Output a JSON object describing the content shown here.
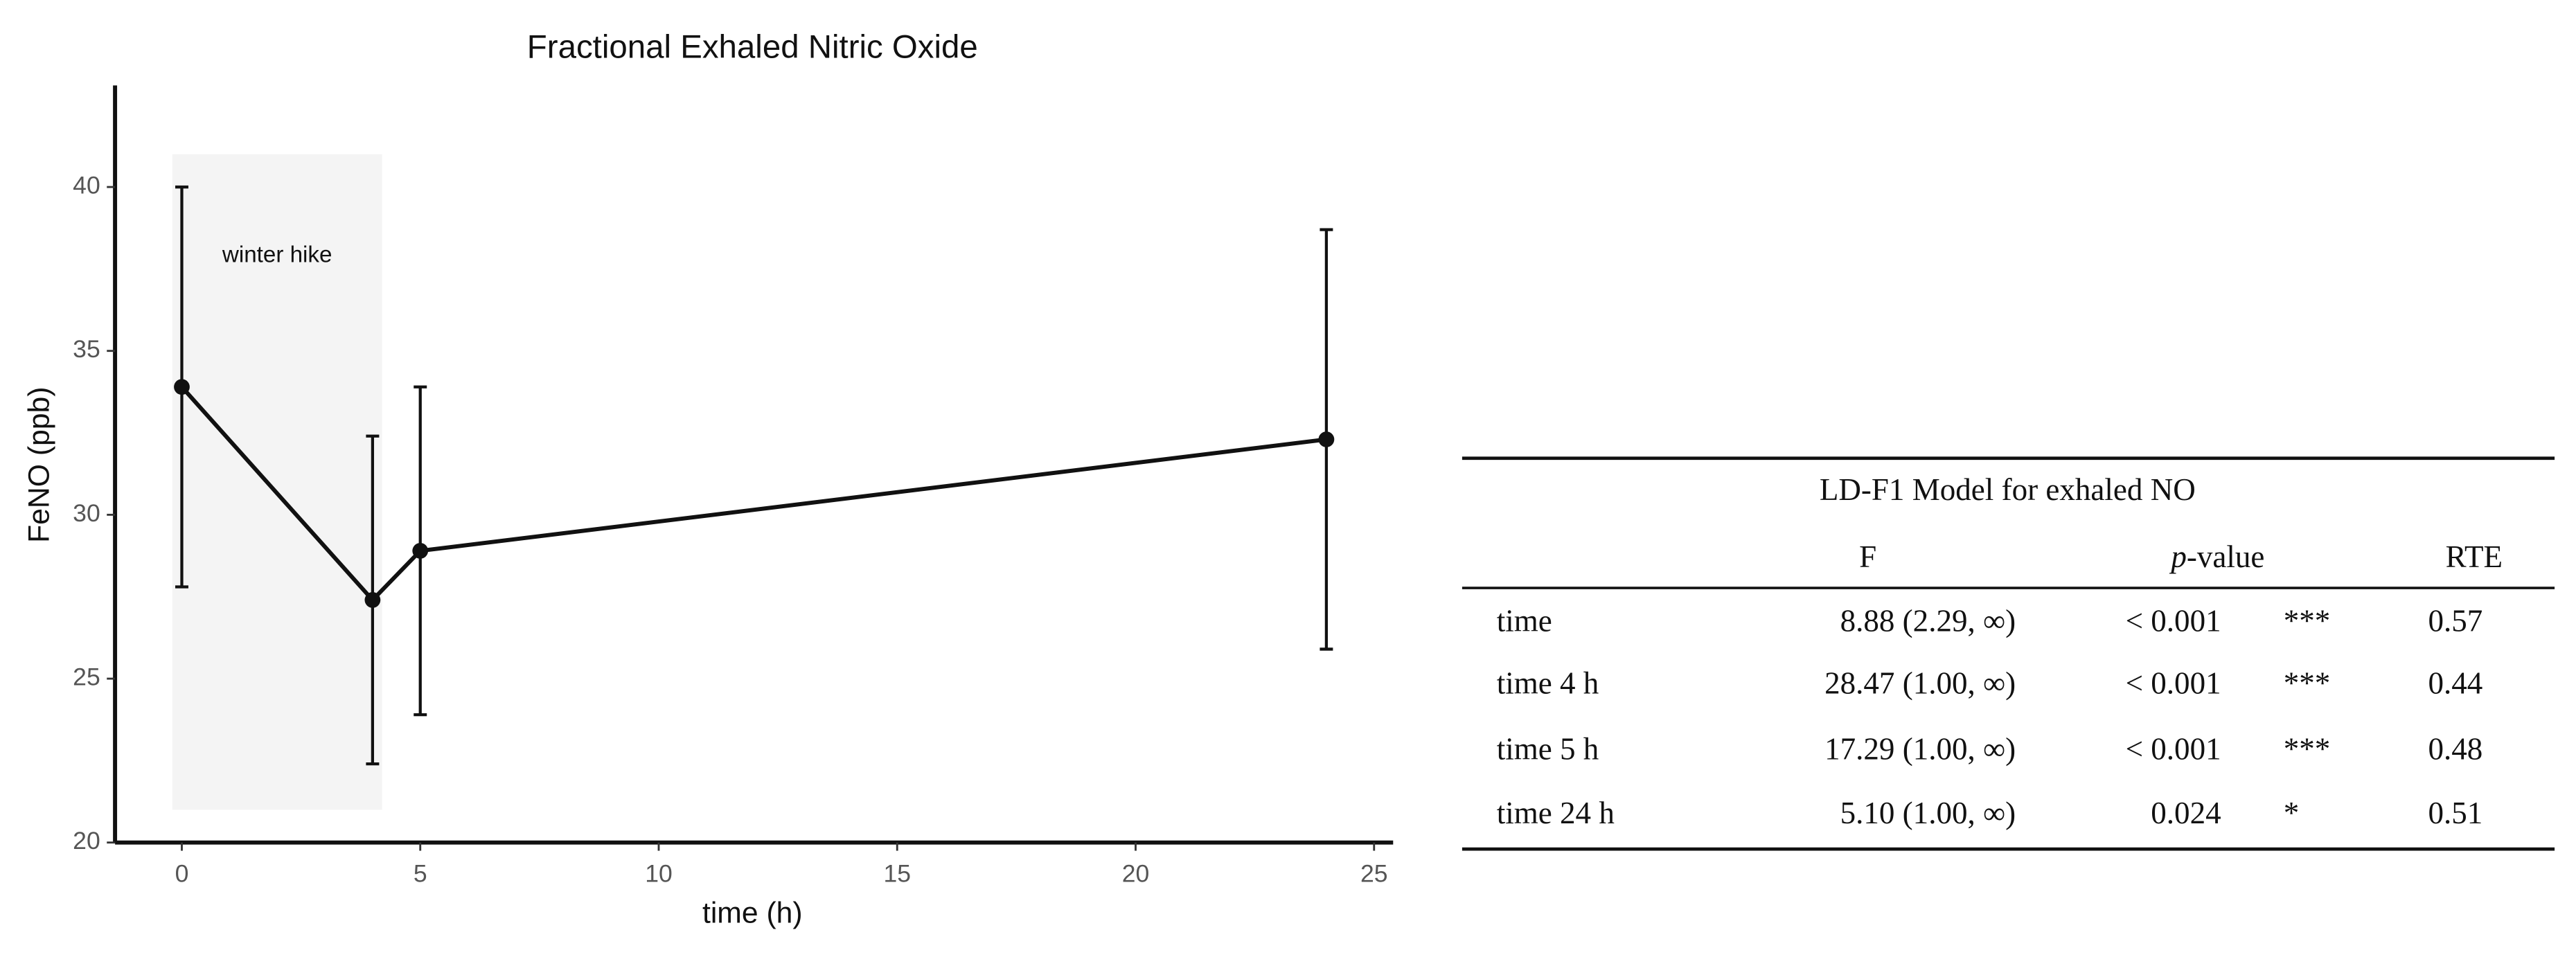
{
  "chart_data": {
    "type": "line",
    "title": "Fractional Exhaled Nitric Oxide",
    "x_label": "time (h)",
    "y_label": "FeNO (ppb)",
    "x": [
      0,
      4,
      5,
      24
    ],
    "values": [
      33.9,
      27.4,
      28.9,
      32.3
    ],
    "errors": [
      6.1,
      5.0,
      5.0,
      6.4
    ],
    "color": "#111111",
    "xlim": [
      -1.4,
      25.4
    ],
    "ylim": [
      20,
      43.1
    ],
    "xticks": [
      0,
      5,
      10,
      15,
      20,
      25
    ],
    "yticks": [
      20,
      25,
      30,
      35,
      40
    ],
    "grid": false,
    "shaded_region": {
      "label": "winter hike",
      "xlim": [
        -0.2,
        4.2
      ],
      "ylim": [
        21,
        41
      ],
      "color": "#f4f4f4"
    }
  },
  "table": {
    "title": "LD-F1 Model for exhaled NO",
    "columns": [
      "F",
      "p-value",
      "RTE"
    ],
    "rows": [
      [
        "time",
        "8.88 (2.29, ∞)",
        "< 0.001",
        "***",
        "0.57"
      ],
      [
        "time 4 h",
        "28.47 (1.00, ∞)",
        "< 0.001",
        "***",
        "0.44"
      ],
      [
        "time 5 h",
        "17.29 (1.00, ∞)",
        "< 0.001",
        "***",
        "0.48"
      ],
      [
        "time 24 h",
        "5.10 (1.00, ∞)",
        "0.024",
        "*",
        "0.51"
      ]
    ]
  }
}
